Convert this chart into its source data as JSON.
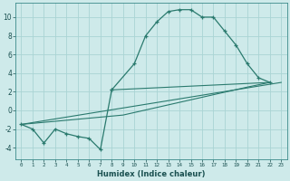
{
  "xlabel": "Humidex (Indice chaleur)",
  "bg_color": "#ceeaea",
  "grid_color": "#aad4d4",
  "line_color": "#2a7a6e",
  "xlim": [
    -0.5,
    23.5
  ],
  "ylim": [
    -5.2,
    11.5
  ],
  "xticks": [
    0,
    1,
    2,
    3,
    4,
    5,
    6,
    7,
    8,
    9,
    10,
    11,
    12,
    13,
    14,
    15,
    16,
    17,
    18,
    19,
    20,
    21,
    22,
    23
  ],
  "yticks": [
    -4,
    -2,
    0,
    2,
    4,
    6,
    8,
    10
  ],
  "s1x": [
    0,
    1,
    2,
    3,
    4,
    5,
    6,
    7,
    8
  ],
  "s1y": [
    -1.5,
    -2.0,
    -3.5,
    -2.0,
    -2.5,
    -2.8,
    -3.0,
    -4.2,
    2.2
  ],
  "s2x": [
    8,
    10,
    11,
    12,
    13,
    14,
    15,
    16,
    17,
    18,
    19,
    20,
    21,
    22
  ],
  "s2y": [
    2.2,
    5.0,
    8.0,
    9.5,
    10.6,
    10.8,
    10.8,
    10.0,
    10.0,
    8.5,
    7.0,
    5.0,
    3.5,
    3.0
  ],
  "s3x": [
    0,
    23
  ],
  "s3y": [
    -1.5,
    3.0
  ],
  "s4x": [
    0,
    9,
    20,
    22
  ],
  "s4y": [
    -1.5,
    -0.5,
    2.5,
    3.0
  ],
  "s5x": [
    8,
    22
  ],
  "s5y": [
    2.2,
    3.0
  ]
}
